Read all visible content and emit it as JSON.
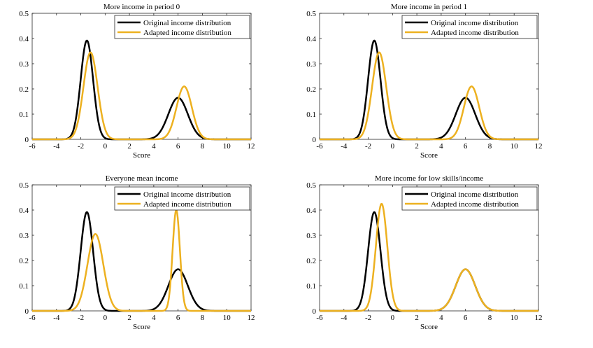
{
  "figure": {
    "line_colors": {
      "original": "#000000",
      "adapted": "#EDB120"
    }
  },
  "chart_data": [
    {
      "type": "line",
      "title": "More income in period 0",
      "xlabel": "Score",
      "ylabel": "",
      "xlim": [
        -6,
        12
      ],
      "ylim": [
        0,
        0.5
      ],
      "xticks": [
        "-6",
        "-4",
        "-2",
        "0",
        "2",
        "4",
        "6",
        "8",
        "10",
        "12"
      ],
      "yticks": [
        "0",
        "0.1",
        "0.2",
        "0.3",
        "0.4",
        "0.5"
      ],
      "legend": "top-right",
      "grid": false,
      "series": [
        {
          "name": "Original income distribution",
          "color": "#000000",
          "components": [
            {
              "mu": -1.5,
              "sigma": 0.51,
              "peak": 0.392
            },
            {
              "mu": 6.0,
              "sigma": 0.8,
              "peak": 0.165
            }
          ]
        },
        {
          "name": "Adapted income distribution",
          "color": "#EDB120",
          "components": [
            {
              "mu": -1.2,
              "sigma": 0.58,
              "peak": 0.345
            },
            {
              "mu": 6.5,
              "sigma": 0.63,
              "peak": 0.21
            }
          ]
        }
      ]
    },
    {
      "type": "line",
      "title": "More income in period 1",
      "xlabel": "Score",
      "ylabel": "",
      "xlim": [
        -6,
        12
      ],
      "ylim": [
        0,
        0.5
      ],
      "xticks": [
        "-6",
        "-4",
        "-2",
        "0",
        "2",
        "4",
        "6",
        "8",
        "10",
        "12"
      ],
      "yticks": [
        "0",
        "0.1",
        "0.2",
        "0.3",
        "0.4",
        "0.5"
      ],
      "legend": "top-right",
      "grid": false,
      "series": [
        {
          "name": "Original income distribution",
          "color": "#000000",
          "components": [
            {
              "mu": -1.5,
              "sigma": 0.51,
              "peak": 0.392
            },
            {
              "mu": 6.0,
              "sigma": 0.8,
              "peak": 0.165
            }
          ]
        },
        {
          "name": "Adapted income distribution",
          "color": "#EDB120",
          "components": [
            {
              "mu": -1.1,
              "sigma": 0.58,
              "peak": 0.345
            },
            {
              "mu": 6.5,
              "sigma": 0.63,
              "peak": 0.21
            }
          ]
        }
      ]
    },
    {
      "type": "line",
      "title": "Everyone mean income",
      "xlabel": "Score",
      "ylabel": "",
      "xlim": [
        -6,
        12
      ],
      "ylim": [
        0,
        0.5
      ],
      "xticks": [
        "-6",
        "-4",
        "-2",
        "0",
        "2",
        "4",
        "6",
        "8",
        "10",
        "12"
      ],
      "yticks": [
        "0",
        "0.1",
        "0.2",
        "0.3",
        "0.4",
        "0.5"
      ],
      "legend": "top-right",
      "grid": false,
      "series": [
        {
          "name": "Original income distribution",
          "color": "#000000",
          "components": [
            {
              "mu": -1.5,
              "sigma": 0.51,
              "peak": 0.392
            },
            {
              "mu": 6.0,
              "sigma": 0.8,
              "peak": 0.165
            }
          ]
        },
        {
          "name": "Adapted income distribution",
          "color": "#EDB120",
          "components": [
            {
              "mu": -0.8,
              "sigma": 0.65,
              "peak": 0.305
            },
            {
              "mu": 5.85,
              "sigma": 0.3,
              "peak": 0.4
            }
          ]
        }
      ]
    },
    {
      "type": "line",
      "title": "More income for low skills/income",
      "xlabel": "Score",
      "ylabel": "",
      "xlim": [
        -6,
        12
      ],
      "ylim": [
        0,
        0.5
      ],
      "xticks": [
        "-6",
        "-4",
        "-2",
        "0",
        "2",
        "4",
        "6",
        "8",
        "10",
        "12"
      ],
      "yticks": [
        "0",
        "0.1",
        "0.2",
        "0.3",
        "0.4",
        "0.5"
      ],
      "legend": "top-right",
      "grid": false,
      "series": [
        {
          "name": "Original income distribution",
          "color": "#000000",
          "components": [
            {
              "mu": -1.5,
              "sigma": 0.51,
              "peak": 0.392
            },
            {
              "mu": 6.0,
              "sigma": 0.8,
              "peak": 0.165
            }
          ]
        },
        {
          "name": "Adapted income distribution",
          "color": "#EDB120",
          "components": [
            {
              "mu": -0.9,
              "sigma": 0.47,
              "peak": 0.425
            },
            {
              "mu": 6.0,
              "sigma": 0.8,
              "peak": 0.165
            }
          ]
        }
      ]
    }
  ]
}
